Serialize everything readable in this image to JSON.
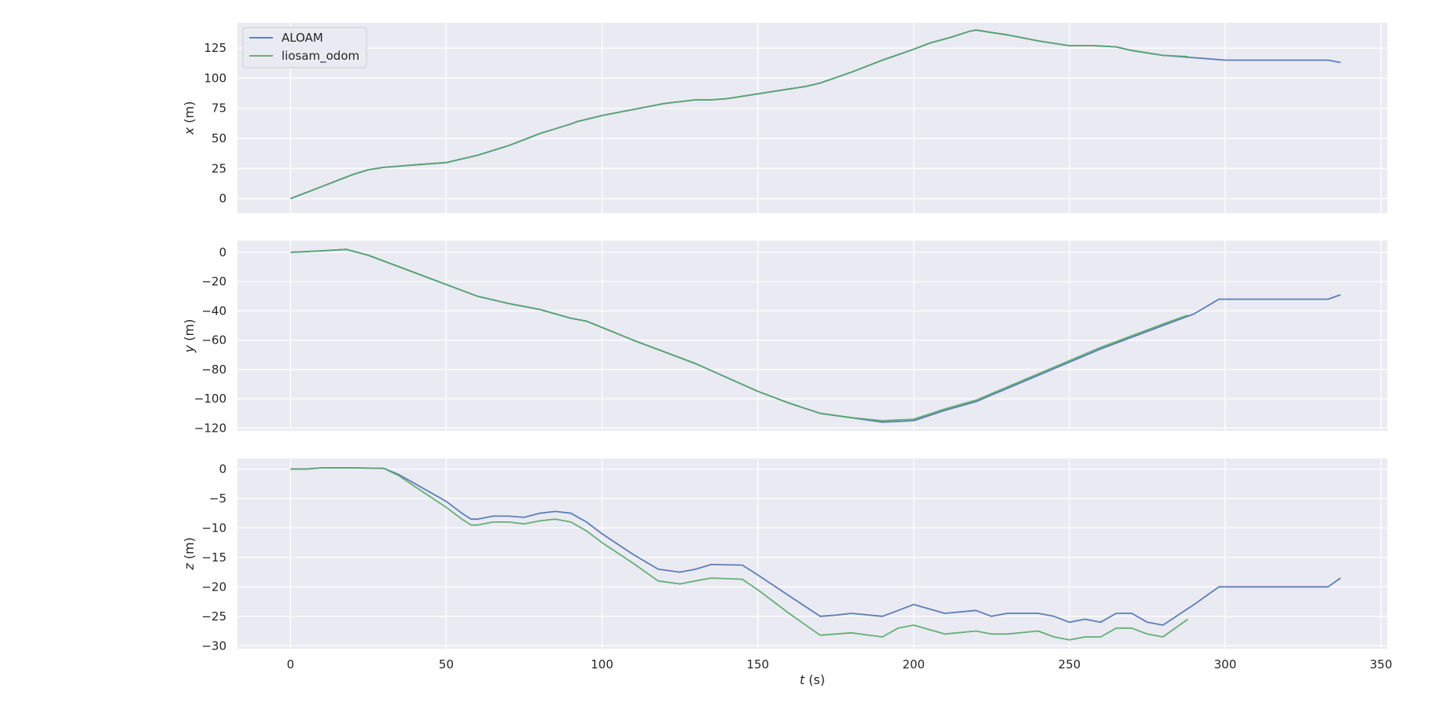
{
  "chart_data": {
    "type": "line",
    "xlabel_var": "t",
    "xlabel_unit": " (s)",
    "xlim": [
      -17,
      352
    ],
    "xticks": [
      0,
      50,
      100,
      150,
      200,
      250,
      300,
      350
    ],
    "xtick_labels": [
      "0",
      "50",
      "100",
      "150",
      "200",
      "250",
      "300",
      "350"
    ],
    "legend": {
      "placement": "upper-left",
      "entries": [
        "ALOAM",
        "liosam_odom"
      ]
    },
    "colors": {
      "ALOAM": "#4c72b0",
      "liosam_odom": "#55a868",
      "plot_bg": "#eaeaf2",
      "grid": "#ffffff"
    },
    "grid": true,
    "subplots": [
      {
        "ylabel_var": "x",
        "ylabel_unit": " (m)",
        "ylim": [
          -12,
          146
        ],
        "yticks": [
          0,
          25,
          50,
          75,
          100,
          125
        ],
        "ytick_labels": [
          "0",
          "25",
          "50",
          "75",
          "100",
          "125"
        ],
        "series": [
          {
            "name": "ALOAM",
            "x": [
              0,
              5,
              10,
              15,
              20,
              25,
              30,
              40,
              50,
              55,
              60,
              65,
              70,
              75,
              80,
              85,
              90,
              92,
              100,
              110,
              120,
              130,
              135,
              140,
              150,
              160,
              165,
              170,
              180,
              190,
              200,
              205,
              212,
              218,
              220,
              225,
              230,
              240,
              250,
              258,
              265,
              270,
              275,
              280,
              290,
              300,
              310,
              320,
              333,
              337
            ],
            "y": [
              0,
              5,
              10,
              15,
              20,
              24,
              26,
              28,
              30,
              33,
              36,
              40,
              44,
              49,
              54,
              58,
              62,
              64,
              69,
              74,
              79,
              82,
              82,
              83,
              87,
              91,
              93,
              96,
              105,
              115,
              124,
              129,
              134,
              139,
              140,
              138,
              136,
              131,
              127,
              127,
              126,
              123,
              121,
              119,
              117,
              115,
              115,
              115,
              115,
              113
            ]
          },
          {
            "name": "liosam_odom",
            "x": [
              0,
              5,
              10,
              15,
              20,
              25,
              30,
              40,
              50,
              55,
              60,
              65,
              70,
              75,
              80,
              85,
              90,
              92,
              100,
              110,
              120,
              130,
              135,
              140,
              150,
              160,
              165,
              170,
              180,
              190,
              200,
              205,
              212,
              218,
              220,
              225,
              230,
              240,
              250,
              258,
              265,
              270,
              275,
              280,
              288
            ],
            "y": [
              0,
              5,
              10,
              15,
              20,
              24,
              26,
              28,
              30,
              33,
              36,
              40,
              44,
              49,
              54,
              58,
              62,
              64,
              69,
              74,
              79,
              82,
              82,
              83,
              87,
              91,
              93,
              96,
              105,
              115,
              124,
              129,
              134,
              139,
              140,
              138,
              136,
              131,
              127,
              127,
              126,
              123,
              121,
              119,
              118
            ]
          }
        ]
      },
      {
        "ylabel_var": "y",
        "ylabel_unit": " (m)",
        "ylim": [
          -122,
          8
        ],
        "yticks": [
          0,
          -20,
          -40,
          -60,
          -80,
          -100,
          -120
        ],
        "ytick_labels": [
          "0",
          "−20",
          "−40",
          "−60",
          "−80",
          "−100",
          "−120"
        ],
        "series": [
          {
            "name": "ALOAM",
            "x": [
              0,
              10,
              18,
              25,
              35,
              45,
              55,
              60,
              70,
              80,
              85,
              90,
              95,
              110,
              130,
              150,
              160,
              170,
              180,
              190,
              200,
              210,
              220,
              230,
              240,
              250,
              260,
              270,
              280,
              290,
              298,
              310,
              320,
              333,
              337
            ],
            "y": [
              0,
              1,
              2,
              -2,
              -10,
              -18,
              -26,
              -30,
              -35,
              -39,
              -42,
              -45,
              -47,
              -60,
              -76,
              -95,
              -103,
              -110,
              -113,
              -116,
              -115,
              -108,
              -102,
              -93,
              -84,
              -75,
              -66,
              -58,
              -50,
              -42,
              -32,
              -32,
              -32,
              -32,
              -29
            ]
          },
          {
            "name": "liosam_odom",
            "x": [
              0,
              10,
              18,
              25,
              35,
              45,
              55,
              60,
              70,
              80,
              85,
              90,
              95,
              110,
              130,
              150,
              160,
              170,
              180,
              190,
              200,
              210,
              220,
              230,
              240,
              250,
              260,
              270,
              280,
              288
            ],
            "y": [
              0,
              1,
              2,
              -2,
              -10,
              -18,
              -26,
              -30,
              -35,
              -39,
              -42,
              -45,
              -47,
              -60,
              -76,
              -95,
              -103,
              -110,
              -113,
              -115,
              -114,
              -107,
              -101,
              -92,
              -83,
              -74,
              -65,
              -57,
              -49,
              -43
            ]
          }
        ]
      },
      {
        "ylabel_var": "z",
        "ylabel_unit": " (m)",
        "ylim": [
          -30.5,
          1.8
        ],
        "yticks": [
          0,
          -5,
          -10,
          -15,
          -20,
          -25,
          -30
        ],
        "ytick_labels": [
          "0",
          "−5",
          "−10",
          "−15",
          "−20",
          "−25",
          "−30"
        ],
        "series": [
          {
            "name": "ALOAM",
            "x": [
              0,
              5,
              10,
              20,
              30,
              35,
              40,
              50,
              55,
              58,
              60,
              65,
              70,
              75,
              80,
              85,
              90,
              95,
              100,
              110,
              118,
              125,
              130,
              135,
              145,
              150,
              160,
              170,
              175,
              180,
              190,
              195,
              200,
              210,
              220,
              225,
              230,
              240,
              245,
              250,
              255,
              260,
              265,
              270,
              275,
              280,
              290,
              298,
              310,
              320,
              333,
              337
            ],
            "y": [
              0,
              0,
              0.2,
              0.2,
              0.1,
              -1,
              -2.5,
              -5.5,
              -7.5,
              -8.5,
              -8.5,
              -8,
              -8,
              -8.2,
              -7.5,
              -7.2,
              -7.5,
              -9,
              -11,
              -14.5,
              -17,
              -17.5,
              -17,
              -16.2,
              -16.3,
              -18,
              -21.5,
              -25,
              -24.8,
              -24.5,
              -25,
              -24,
              -23,
              -24.5,
              -24,
              -25,
              -24.5,
              -24.5,
              -25,
              -26,
              -25.5,
              -26,
              -24.5,
              -24.5,
              -26,
              -26.5,
              -23,
              -20,
              -20,
              -20,
              -20,
              -18.5
            ]
          },
          {
            "name": "liosam_odom",
            "x": [
              0,
              5,
              10,
              20,
              30,
              35,
              40,
              50,
              55,
              58,
              60,
              65,
              70,
              75,
              80,
              85,
              90,
              95,
              100,
              110,
              118,
              125,
              130,
              135,
              145,
              150,
              160,
              170,
              175,
              180,
              190,
              195,
              200,
              210,
              220,
              225,
              230,
              240,
              245,
              250,
              255,
              260,
              265,
              270,
              275,
              280,
              288
            ],
            "y": [
              0,
              0,
              0.2,
              0.2,
              0.1,
              -1.2,
              -3,
              -6.5,
              -8.5,
              -9.5,
              -9.5,
              -9,
              -9,
              -9.3,
              -8.8,
              -8.5,
              -9,
              -10.5,
              -12.5,
              -16,
              -19,
              -19.5,
              -19,
              -18.5,
              -18.7,
              -20.5,
              -24.5,
              -28.2,
              -28,
              -27.8,
              -28.5,
              -27,
              -26.5,
              -28,
              -27.5,
              -28,
              -28,
              -27.5,
              -28.5,
              -29,
              -28.5,
              -28.5,
              -27,
              -27,
              -28,
              -28.5,
              -25.5
            ]
          }
        ]
      }
    ]
  }
}
